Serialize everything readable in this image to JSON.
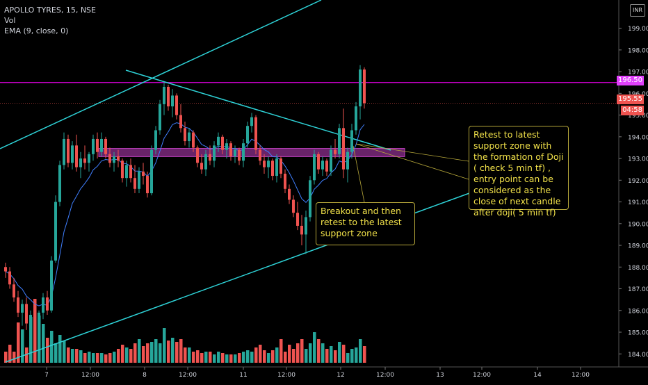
{
  "legend": {
    "symbol": "APOLLO TYRES, 15, NSE",
    "vol": "Vol",
    "ema": "EMA (9, close, 0)"
  },
  "currency_badge": "INR",
  "price_tags": {
    "resistance": "196.50",
    "last_price": "195.55",
    "countdown": "04:58"
  },
  "callouts": {
    "retest": "Retest to latest support zone with the formation of Doji ( check 5 min tf) , entry point can be considered as the close of next candle after doji( 5 min tf)",
    "breakout": "Breakout and then retest to the latest support zone"
  },
  "colors": {
    "background": "#000000",
    "bull": "#26a69a",
    "bear": "#ef5350",
    "trendline": "#2ed3d8",
    "resistance_line": "#e000e0",
    "support_zone": "#c040c0",
    "ema": "#3f7fff",
    "callout_text": "#f2e24a",
    "axis_text": "#d1d4dc"
  },
  "chart_data": {
    "type": "candlestick",
    "title": "APOLLO TYRES, 15, NSE",
    "y_axis": {
      "ticks": [
        "184.00",
        "185.00",
        "186.00",
        "187.00",
        "188.00",
        "189.00",
        "190.00",
        "191.00",
        "192.00",
        "193.00",
        "194.00",
        "195.00",
        "196.00",
        "197.00",
        "198.00",
        "199.00"
      ],
      "range": [
        183.4,
        200.3
      ]
    },
    "x_axis": {
      "ticks": [
        "7",
        "12:00",
        "8",
        "12:00",
        "11",
        "12:00",
        "12",
        "12:00",
        "13",
        "12:00",
        "14",
        "12:00"
      ]
    },
    "horizontal_lines": [
      {
        "name": "resistance",
        "value": 196.5
      },
      {
        "name": "last",
        "value": 195.55
      }
    ],
    "support_zone": {
      "low": 193.15,
      "high": 193.4
    },
    "candles": [
      [
        188.0,
        188.2,
        187.5,
        187.8
      ],
      [
        187.8,
        188.0,
        187.0,
        187.2
      ],
      [
        187.2,
        187.5,
        186.4,
        186.6
      ],
      [
        186.6,
        186.9,
        185.7,
        185.9
      ],
      [
        185.9,
        186.5,
        185.3,
        186.3
      ],
      [
        186.3,
        186.6,
        185.1,
        185.4
      ],
      [
        185.4,
        186.0,
        184.7,
        185.8
      ],
      [
        185.8,
        186.4,
        185.2,
        185.5
      ],
      [
        185.5,
        186.0,
        184.9,
        185.9
      ],
      [
        185.9,
        186.8,
        185.6,
        186.6
      ],
      [
        186.6,
        186.9,
        185.8,
        186.0
      ],
      [
        186.0,
        188.5,
        185.9,
        188.3
      ],
      [
        188.3,
        191.3,
        188.2,
        191.0
      ],
      [
        191.0,
        192.9,
        190.8,
        192.7
      ],
      [
        192.7,
        194.2,
        192.5,
        193.9
      ],
      [
        193.9,
        194.1,
        192.6,
        192.8
      ],
      [
        192.8,
        193.8,
        192.5,
        193.6
      ],
      [
        193.6,
        194.1,
        192.4,
        192.6
      ],
      [
        192.6,
        193.3,
        192.1,
        193.0
      ],
      [
        193.0,
        193.6,
        192.5,
        192.8
      ],
      [
        192.8,
        193.3,
        192.4,
        193.2
      ],
      [
        193.2,
        194.1,
        192.9,
        193.9
      ],
      [
        193.9,
        194.2,
        193.0,
        193.3
      ],
      [
        193.3,
        194.2,
        193.1,
        193.9
      ],
      [
        193.9,
        194.0,
        193.0,
        193.2
      ],
      [
        193.2,
        193.5,
        192.6,
        192.8
      ],
      [
        192.8,
        193.3,
        192.4,
        193.1
      ],
      [
        193.1,
        193.4,
        192.6,
        192.9
      ],
      [
        192.9,
        193.0,
        191.9,
        192.1
      ],
      [
        192.1,
        192.9,
        191.7,
        192.7
      ],
      [
        192.7,
        193.0,
        191.9,
        192.1
      ],
      [
        192.1,
        192.7,
        191.4,
        191.6
      ],
      [
        191.6,
        192.6,
        191.4,
        192.4
      ],
      [
        192.4,
        192.8,
        191.8,
        192.2
      ],
      [
        192.2,
        192.4,
        191.2,
        191.4
      ],
      [
        191.4,
        193.6,
        191.3,
        193.4
      ],
      [
        193.4,
        194.5,
        193.2,
        194.3
      ],
      [
        194.3,
        195.7,
        194.1,
        195.5
      ],
      [
        195.5,
        196.5,
        195.0,
        196.3
      ],
      [
        196.3,
        196.4,
        195.2,
        195.4
      ],
      [
        195.4,
        196.2,
        194.9,
        195.9
      ],
      [
        195.9,
        196.0,
        194.8,
        195.0
      ],
      [
        195.0,
        195.5,
        194.2,
        194.4
      ],
      [
        194.4,
        194.7,
        193.6,
        193.8
      ],
      [
        193.8,
        194.4,
        193.5,
        194.2
      ],
      [
        194.2,
        194.3,
        193.3,
        193.5
      ],
      [
        193.5,
        193.6,
        192.6,
        192.8
      ],
      [
        192.8,
        193.2,
        192.3,
        192.5
      ],
      [
        192.5,
        193.4,
        192.2,
        193.2
      ],
      [
        193.2,
        193.6,
        192.7,
        192.9
      ],
      [
        192.9,
        193.8,
        192.6,
        193.6
      ],
      [
        193.6,
        194.2,
        193.3,
        194.0
      ],
      [
        194.0,
        194.1,
        193.2,
        193.4
      ],
      [
        193.4,
        193.9,
        193.0,
        193.7
      ],
      [
        193.7,
        193.8,
        192.9,
        193.1
      ],
      [
        193.1,
        193.6,
        192.8,
        193.4
      ],
      [
        193.4,
        193.5,
        192.7,
        192.9
      ],
      [
        192.9,
        193.9,
        192.6,
        193.7
      ],
      [
        193.7,
        194.7,
        193.5,
        194.5
      ],
      [
        194.5,
        195.1,
        194.2,
        194.9
      ],
      [
        194.9,
        195.0,
        193.2,
        193.4
      ],
      [
        193.4,
        193.6,
        192.7,
        192.9
      ],
      [
        192.9,
        193.2,
        192.3,
        192.6
      ],
      [
        192.6,
        193.1,
        192.1,
        192.9
      ],
      [
        192.9,
        193.0,
        192.0,
        192.2
      ],
      [
        192.2,
        193.2,
        191.9,
        193.0
      ],
      [
        193.0,
        193.1,
        192.1,
        192.3
      ],
      [
        192.3,
        192.5,
        191.4,
        191.6
      ],
      [
        191.6,
        191.8,
        190.9,
        191.1
      ],
      [
        191.1,
        191.3,
        190.3,
        190.5
      ],
      [
        190.5,
        191.0,
        189.7,
        189.9
      ],
      [
        189.9,
        190.4,
        189.0,
        189.5
      ],
      [
        189.5,
        190.6,
        188.6,
        190.3
      ],
      [
        190.3,
        192.2,
        190.1,
        192.0
      ],
      [
        192.0,
        193.4,
        191.8,
        193.2
      ],
      [
        193.2,
        193.3,
        192.3,
        192.5
      ],
      [
        192.5,
        193.1,
        192.2,
        192.9
      ],
      [
        192.9,
        193.0,
        192.2,
        192.4
      ],
      [
        192.4,
        193.6,
        192.2,
        193.4
      ],
      [
        193.4,
        193.9,
        193.0,
        193.2
      ],
      [
        193.2,
        194.6,
        193.0,
        194.4
      ],
      [
        194.4,
        195.3,
        192.1,
        192.5
      ],
      [
        192.5,
        193.5,
        191.9,
        193.3
      ],
      [
        193.3,
        194.6,
        193.0,
        194.3
      ],
      [
        194.3,
        195.6,
        194.1,
        195.4
      ],
      [
        195.4,
        197.3,
        194.8,
        197.1
      ],
      [
        197.1,
        197.2,
        195.3,
        195.55
      ]
    ],
    "volume_relative": [
      0.16,
      0.26,
      0.16,
      0.58,
      0.48,
      0.22,
      0.66,
      0.92,
      0.68,
      0.56,
      0.36,
      0.46,
      0.28,
      0.4,
      0.32,
      0.22,
      0.2,
      0.2,
      0.18,
      0.14,
      0.16,
      0.14,
      0.14,
      0.14,
      0.12,
      0.14,
      0.16,
      0.2,
      0.26,
      0.22,
      0.2,
      0.28,
      0.34,
      0.24,
      0.28,
      0.3,
      0.34,
      0.28,
      0.5,
      0.32,
      0.36,
      0.3,
      0.34,
      0.22,
      0.22,
      0.16,
      0.18,
      0.14,
      0.16,
      0.16,
      0.12,
      0.16,
      0.14,
      0.12,
      0.12,
      0.12,
      0.14,
      0.16,
      0.18,
      0.16,
      0.22,
      0.26,
      0.18,
      0.14,
      0.18,
      0.22,
      0.34,
      0.16,
      0.26,
      0.2,
      0.28,
      0.34,
      0.2,
      0.28,
      0.44,
      0.34,
      0.28,
      0.2,
      0.24,
      0.18,
      0.3,
      0.26,
      0.14,
      0.2,
      0.22,
      0.34,
      0.24
    ],
    "ema_9": true
  }
}
